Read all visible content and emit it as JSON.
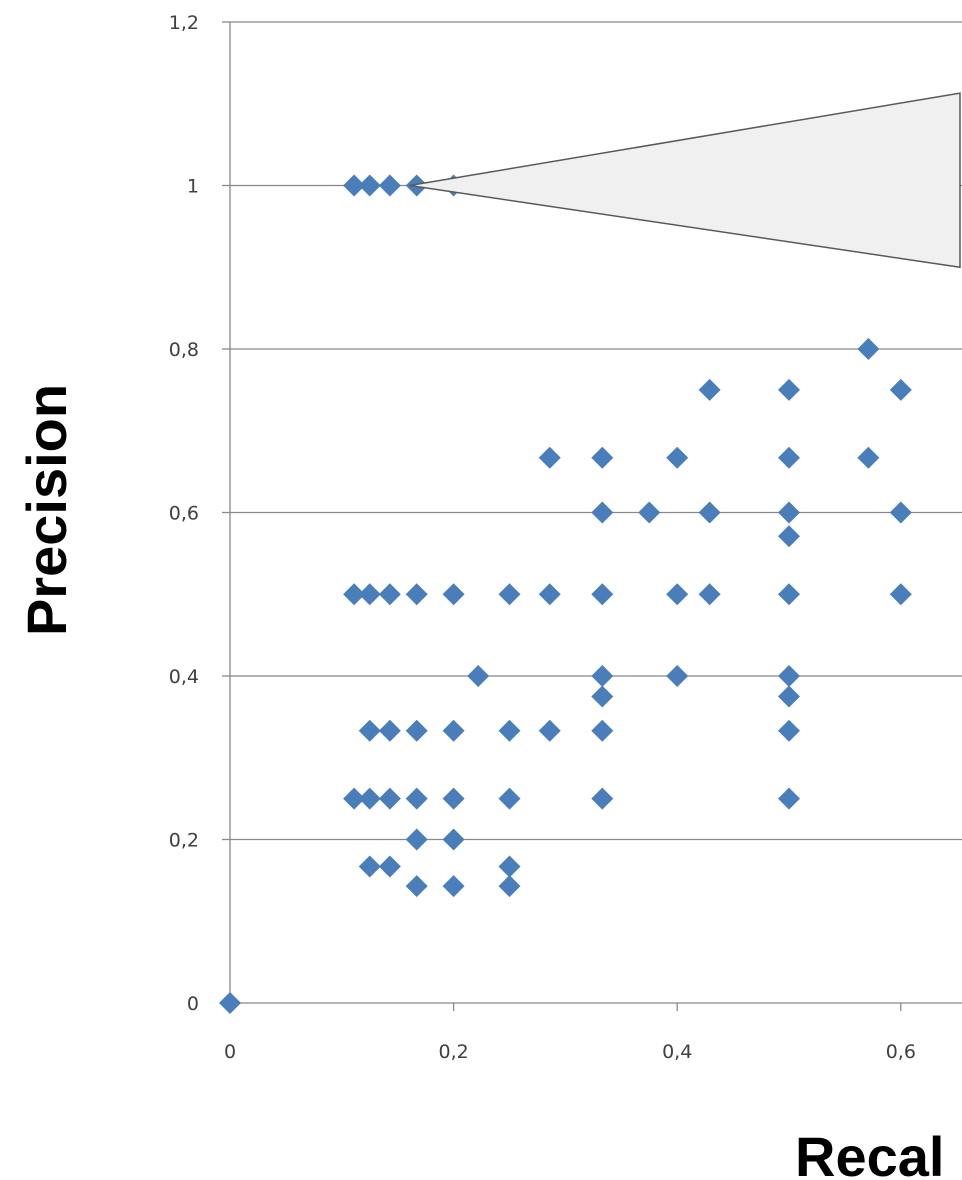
{
  "chart_data": {
    "type": "scatter",
    "xlabel": "Recal",
    "ylabel": "Precision",
    "xlim": [
      0,
      0.65
    ],
    "ylim": [
      0,
      1.2
    ],
    "x_ticks": [
      "0",
      "0,2",
      "0,4",
      "0,6"
    ],
    "y_ticks": [
      "0",
      "0,2",
      "0,4",
      "0,6",
      "0,8",
      "1",
      "1,2"
    ],
    "grid": "horizontal",
    "legend": "none",
    "colors": {
      "marker": "#4a7ebb",
      "grid": "#888888",
      "callout_fill": "#f0f0f0",
      "callout_stroke": "#595959"
    },
    "callout": {
      "tip": [
        0.15,
        1.0
      ],
      "top": [
        0.65,
        1.113
      ],
      "bottom": [
        0.65,
        0.9
      ]
    },
    "x": [
      0,
      0.111,
      0.125,
      0.143,
      0.167,
      0.2,
      0.571,
      0.429,
      0.5,
      0.6,
      0.286,
      0.333,
      0.4,
      0.5,
      0.571,
      0.333,
      0.375,
      0.429,
      0.5,
      0.6,
      0.5,
      0.111,
      0.125,
      0.143,
      0.167,
      0.2,
      0.25,
      0.286,
      0.333,
      0.4,
      0.429,
      0.5,
      0.6,
      0.222,
      0.333,
      0.4,
      0.5,
      0.333,
      0.5,
      0.125,
      0.143,
      0.167,
      0.2,
      0.25,
      0.286,
      0.333,
      0.5,
      0.111,
      0.125,
      0.143,
      0.167,
      0.2,
      0.25,
      0.333,
      0.5,
      0.167,
      0.2,
      0.125,
      0.143,
      0.25,
      0.167,
      0.2,
      0.25
    ],
    "y": [
      0,
      1,
      1,
      1,
      1,
      1,
      0.8,
      0.75,
      0.75,
      0.75,
      0.667,
      0.667,
      0.667,
      0.667,
      0.667,
      0.6,
      0.6,
      0.6,
      0.6,
      0.6,
      0.571,
      0.5,
      0.5,
      0.5,
      0.5,
      0.5,
      0.5,
      0.5,
      0.5,
      0.5,
      0.5,
      0.5,
      0.5,
      0.4,
      0.4,
      0.4,
      0.4,
      0.375,
      0.375,
      0.333,
      0.333,
      0.333,
      0.333,
      0.333,
      0.333,
      0.333,
      0.333,
      0.25,
      0.25,
      0.25,
      0.25,
      0.25,
      0.25,
      0.25,
      0.25,
      0.2,
      0.2,
      0.167,
      0.167,
      0.167,
      0.143,
      0.143,
      0.143
    ]
  }
}
